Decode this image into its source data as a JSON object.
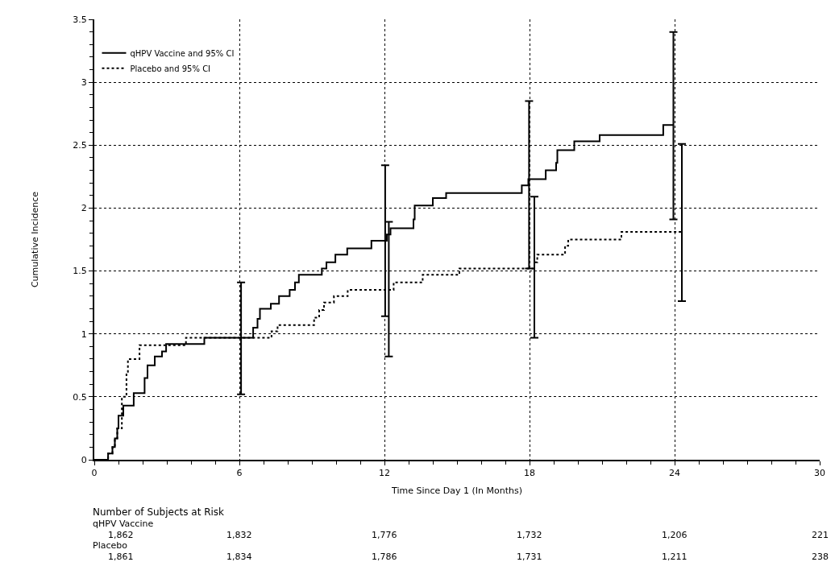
{
  "chart_data": {
    "type": "step",
    "xlabel": "Time Since Day 1 (In Months)",
    "ylabel": "Cumulative Incidence",
    "xlim": [
      0,
      30
    ],
    "xticks": [
      0,
      6,
      12,
      18,
      24,
      30
    ],
    "ylim": [
      0,
      3.5
    ],
    "yticks": [
      0,
      0.5,
      1,
      1.5,
      2,
      2.5,
      3,
      3.5
    ],
    "grid": true,
    "legend": "top left",
    "marker": "none",
    "series": [
      {
        "name": "qHPV Vaccine and 95% CI",
        "color": "#000000",
        "line_style": "solid",
        "x": [
          0,
          0.57,
          0.75,
          0.85,
          0.95,
          1.0,
          1.2,
          1.63,
          2.08,
          2.2,
          2.5,
          2.8,
          2.97,
          4.55,
          6.07,
          6.57,
          6.75,
          6.85,
          7.3,
          7.64,
          8.08,
          8.3,
          8.46,
          9.41,
          9.6,
          9.97,
          10.46,
          11.46,
          12.03,
          12.1,
          12.25,
          13.2,
          13.25,
          14.0,
          14.55,
          17.68,
          17.95,
          17.98,
          18.67,
          19.1,
          19.15,
          19.85,
          20.9,
          23.53,
          23.95
        ],
        "values": [
          0,
          0.05,
          0.1,
          0.17,
          0.25,
          0.35,
          0.43,
          0.53,
          0.65,
          0.75,
          0.82,
          0.86,
          0.92,
          0.97,
          0.97,
          1.05,
          1.12,
          1.2,
          1.24,
          1.3,
          1.35,
          1.41,
          1.47,
          1.52,
          1.57,
          1.63,
          1.68,
          1.74,
          1.74,
          1.79,
          1.84,
          1.91,
          2.02,
          2.08,
          2.12,
          2.18,
          2.23,
          2.23,
          2.3,
          2.36,
          2.46,
          2.53,
          2.58,
          2.66,
          2.66
        ],
        "errors": [
          null,
          null,
          null,
          null,
          null,
          null,
          null,
          null,
          null,
          null,
          null,
          null,
          null,
          null,
          [
            0.52,
            1.41
          ],
          null,
          null,
          null,
          null,
          null,
          null,
          null,
          null,
          null,
          null,
          null,
          null,
          null,
          [
            1.14,
            2.34
          ],
          null,
          null,
          null,
          null,
          null,
          null,
          null,
          null,
          [
            1.52,
            2.85
          ],
          null,
          null,
          null,
          null,
          null,
          null,
          [
            1.91,
            3.4
          ]
        ]
      },
      {
        "name": "Placebo and 95% CI",
        "color": "#000000",
        "line_style": "dotted",
        "x": [
          0,
          0.57,
          0.75,
          0.85,
          0.95,
          1.14,
          1.33,
          1.39,
          1.87,
          3.79,
          6.07,
          7.33,
          7.58,
          9.09,
          9.3,
          9.5,
          9.91,
          10.48,
          12.18,
          12.38,
          13.58,
          15.1,
          18.08,
          18.2,
          18.32,
          19.47,
          19.6,
          21.8,
          24.3
        ],
        "values": [
          0,
          0.05,
          0.1,
          0.17,
          0.25,
          0.5,
          0.69,
          0.8,
          0.91,
          0.97,
          0.97,
          1.02,
          1.07,
          1.13,
          1.19,
          1.25,
          1.3,
          1.35,
          1.35,
          1.41,
          1.47,
          1.52,
          1.52,
          1.57,
          1.63,
          1.7,
          1.75,
          1.81,
          1.81
        ],
        "errors": [
          null,
          null,
          null,
          null,
          null,
          null,
          null,
          null,
          null,
          null,
          null,
          null,
          null,
          null,
          null,
          null,
          null,
          null,
          [
            0.82,
            1.89
          ],
          null,
          null,
          null,
          null,
          [
            0.97,
            2.09
          ],
          null,
          null,
          null,
          null,
          [
            1.26,
            2.51
          ]
        ]
      }
    ],
    "annotations": [
      "Number of Subjects at Risk",
      "qHPV Vaccine",
      "1,862",
      "1,832",
      "1,776",
      "1,732",
      "1,206",
      "221",
      "Placebo",
      "1,861",
      "1,834",
      "1,786",
      "1,731",
      "1,211",
      "238"
    ]
  }
}
